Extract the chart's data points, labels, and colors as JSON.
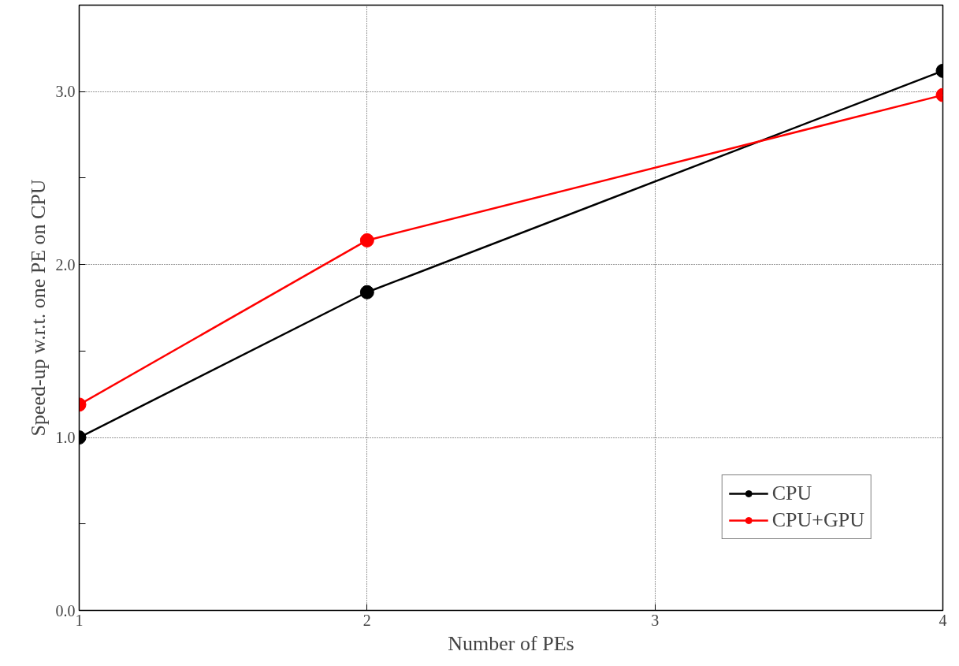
{
  "chart_data": {
    "type": "line",
    "xlabel": "Number of PEs",
    "ylabel": "Speed-up w.r.t. one PE on CPU",
    "x": [
      1,
      2,
      4
    ],
    "series": [
      {
        "name": "CPU",
        "color": "#000000",
        "values": [
          1.0,
          1.84,
          3.12
        ]
      },
      {
        "name": "CPU+GPU",
        "color": "#ff0000",
        "values": [
          1.19,
          2.14,
          2.98
        ]
      }
    ],
    "xlim": [
      1,
      4
    ],
    "xticks": [
      1,
      2,
      3,
      4
    ],
    "ylim": [
      0,
      3.5
    ],
    "yticks": [
      {
        "value": 0,
        "label": "0.0"
      },
      {
        "value": 0.5,
        "label": null
      },
      {
        "value": 1,
        "label": "1.0"
      },
      {
        "value": 1.5,
        "label": null
      },
      {
        "value": 2,
        "label": "2.0"
      },
      {
        "value": 2.5,
        "label": null
      },
      {
        "value": 3,
        "label": "3.0"
      }
    ],
    "grid": true,
    "legend": "bottom right",
    "marker": "circle",
    "line_style": "solid"
  }
}
